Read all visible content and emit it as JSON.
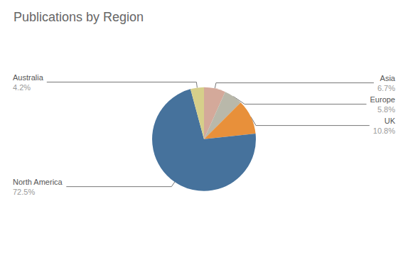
{
  "chart_data": {
    "type": "pie",
    "title": "Publications by Region",
    "categories": [
      "Asia",
      "Europe",
      "UK",
      "North America",
      "Australia"
    ],
    "values": [
      6.7,
      5.8,
      10.8,
      72.5,
      4.2
    ],
    "value_labels": [
      "6.7%",
      "5.8%",
      "10.8%",
      "72.5%",
      "4.2%"
    ],
    "colors": [
      "#d4a99a",
      "#b9b8aa",
      "#e8903a",
      "#46729c",
      "#d6cf8a"
    ],
    "data_labels": true
  }
}
